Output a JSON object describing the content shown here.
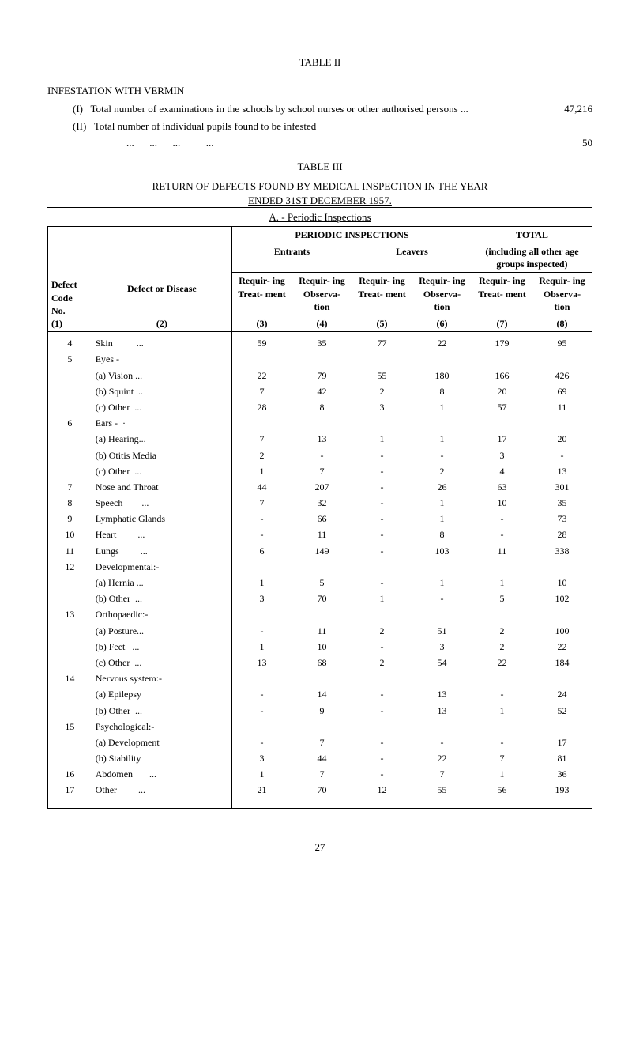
{
  "table_ii_title": "TABLE II",
  "infestation_heading": "INFESTATION WITH VERMIN",
  "item_i_label": "(I)",
  "item_i_text": "Total number of examinations in the schools by school nurses or other authorised persons ...",
  "item_i_value": "47,216",
  "item_ii_label": "(II)",
  "item_ii_text": "Total number of individual pupils found to be infested",
  "item_ii_dots": "...      ...      ...          ...",
  "item_ii_value": "50",
  "table_iii_title": "TABLE III",
  "return_line1": "RETURN OF DEFECTS FOUND BY MEDICAL INSPECTION IN THE YEAR",
  "return_line2": "ENDED 31ST DECEMBER 1957.",
  "section_a": "A. - Periodic Inspections",
  "hdr_periodic": "PERIODIC INSPECTIONS",
  "hdr_total": "TOTAL",
  "hdr_entrants": "Entrants",
  "hdr_leavers": "Leavers",
  "hdr_including": "(including all other age groups inspected)",
  "hdr_defect_code": "Defect Code No.",
  "hdr_defect": "Defect or Disease",
  "hdr_requiring": "Requir- ing",
  "hdr_treat": "Treat- ment",
  "hdr_obs": "Observa- tion",
  "col_nums": {
    "c1": "(1)",
    "c2": "(2)",
    "c3": "(3)",
    "c4": "(4)",
    "c5": "(5)",
    "c6": "(6)",
    "c7": "(7)",
    "c8": "(8)"
  },
  "rows": [
    {
      "code": "4",
      "name": "Skin          ...",
      "c3": "59",
      "c4": "35",
      "c5": "77",
      "c6": "22",
      "c7": "179",
      "c8": "95"
    },
    {
      "code": "5",
      "name": "Eyes -",
      "c3": "",
      "c4": "",
      "c5": "",
      "c6": "",
      "c7": "",
      "c8": ""
    },
    {
      "code": "",
      "name": "(a) Vision ...",
      "sub": true,
      "c3": "22",
      "c4": "79",
      "c5": "55",
      "c6": "180",
      "c7": "166",
      "c8": "426"
    },
    {
      "code": "",
      "name": "(b) Squint ...",
      "sub": true,
      "c3": "7",
      "c4": "42",
      "c5": "2",
      "c6": "8",
      "c7": "20",
      "c8": "69"
    },
    {
      "code": "",
      "name": "(c) Other  ...",
      "sub": true,
      "c3": "28",
      "c4": "8",
      "c5": "3",
      "c6": "1",
      "c7": "57",
      "c8": "11"
    },
    {
      "code": "6",
      "name": "Ears -  ·",
      "c3": "",
      "c4": "",
      "c5": "",
      "c6": "",
      "c7": "",
      "c8": ""
    },
    {
      "code": "",
      "name": "(a) Hearing...",
      "sub": true,
      "c3": "7",
      "c4": "13",
      "c5": "1",
      "c6": "1",
      "c7": "17",
      "c8": "20"
    },
    {
      "code": "",
      "name": "(b) Otitis Media",
      "sub": true,
      "c3": "2",
      "c4": "-",
      "c5": "-",
      "c6": "-",
      "c7": "3",
      "c8": "-"
    },
    {
      "code": "",
      "name": "(c) Other  ...",
      "sub": true,
      "c3": "1",
      "c4": "7",
      "c5": "-",
      "c6": "2",
      "c7": "4",
      "c8": "13"
    },
    {
      "code": "7",
      "name": "Nose and Throat",
      "c3": "44",
      "c4": "207",
      "c5": "-",
      "c6": "26",
      "c7": "63",
      "c8": "301"
    },
    {
      "code": "8",
      "name": "Speech        ...",
      "c3": "7",
      "c4": "32",
      "c5": "-",
      "c6": "1",
      "c7": "10",
      "c8": "35"
    },
    {
      "code": "9",
      "name": "Lymphatic Glands",
      "c3": "-",
      "c4": "66",
      "c5": "-",
      "c6": "1",
      "c7": "-",
      "c8": "73"
    },
    {
      "code": "10",
      "name": "Heart         ...",
      "c3": "-",
      "c4": "11",
      "c5": "-",
      "c6": "8",
      "c7": "-",
      "c8": "28"
    },
    {
      "code": "11",
      "name": "Lungs         ...",
      "c3": "6",
      "c4": "149",
      "c5": "-",
      "c6": "103",
      "c7": "11",
      "c8": "338"
    },
    {
      "code": "12",
      "name": "Developmental:-",
      "c3": "",
      "c4": "",
      "c5": "",
      "c6": "",
      "c7": "",
      "c8": ""
    },
    {
      "code": "",
      "name": "(a) Hernia ...",
      "sub": true,
      "c3": "1",
      "c4": "5",
      "c5": "-",
      "c6": "1",
      "c7": "1",
      "c8": "10"
    },
    {
      "code": "",
      "name": "(b) Other  ...",
      "sub": true,
      "c3": "3",
      "c4": "70",
      "c5": "1",
      "c6": "-",
      "c7": "5",
      "c8": "102"
    },
    {
      "code": "13",
      "name": "Orthopaedic:-",
      "c3": "",
      "c4": "",
      "c5": "",
      "c6": "",
      "c7": "",
      "c8": ""
    },
    {
      "code": "",
      "name": "(a) Posture...",
      "sub": true,
      "c3": "-",
      "c4": "11",
      "c5": "2",
      "c6": "51",
      "c7": "2",
      "c8": "100"
    },
    {
      "code": "",
      "name": "(b) Feet   ...",
      "sub": true,
      "c3": "1",
      "c4": "10",
      "c5": "-",
      "c6": "3",
      "c7": "2",
      "c8": "22"
    },
    {
      "code": "",
      "name": "(c) Other  ...",
      "sub": true,
      "c3": "13",
      "c4": "68",
      "c5": "2",
      "c6": "54",
      "c7": "22",
      "c8": "184"
    },
    {
      "code": "14",
      "name": "Nervous system:-",
      "c3": "",
      "c4": "",
      "c5": "",
      "c6": "",
      "c7": "",
      "c8": ""
    },
    {
      "code": "",
      "name": "(a) Epilepsy",
      "sub": true,
      "c3": "-",
      "c4": "14",
      "c5": "-",
      "c6": "13",
      "c7": "-",
      "c8": "24"
    },
    {
      "code": "",
      "name": "(b) Other  ...",
      "sub": true,
      "c3": "-",
      "c4": "9",
      "c5": "-",
      "c6": "13",
      "c7": "1",
      "c8": "52"
    },
    {
      "code": "15",
      "name": "Psychological:-",
      "c3": "",
      "c4": "",
      "c5": "",
      "c6": "",
      "c7": "",
      "c8": ""
    },
    {
      "code": "",
      "name": "(a) Development",
      "sub": true,
      "c3": "-",
      "c4": "7",
      "c5": "-",
      "c6": "-",
      "c7": "-",
      "c8": "17"
    },
    {
      "code": "",
      "name": "(b) Stability",
      "sub": true,
      "c3": "3",
      "c4": "44",
      "c5": "-",
      "c6": "22",
      "c7": "7",
      "c8": "81"
    },
    {
      "code": "16",
      "name": "Abdomen       ...",
      "c3": "1",
      "c4": "7",
      "c5": "-",
      "c6": "7",
      "c7": "1",
      "c8": "36"
    },
    {
      "code": "17",
      "name": "Other         ...",
      "c3": "21",
      "c4": "70",
      "c5": "12",
      "c6": "55",
      "c7": "56",
      "c8": "193"
    }
  ],
  "page_number": "27"
}
